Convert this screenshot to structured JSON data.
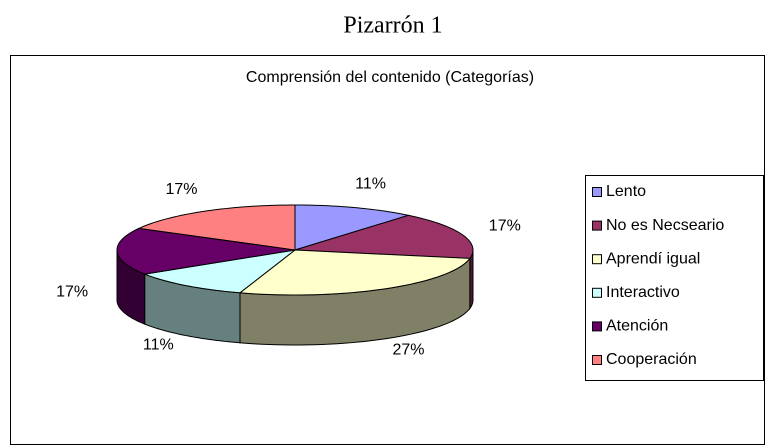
{
  "chart_data": {
    "type": "pie3d",
    "title": "Pizarrón 1",
    "subtitle": "Comprensión del contenido (Categorías)",
    "categories": [
      "Lento",
      "No es Necseario",
      "Aprendí igual",
      "Interactivo",
      "Atención",
      "Cooperación"
    ],
    "values": [
      11,
      17,
      27,
      11,
      17,
      17
    ],
    "value_labels": [
      "11%",
      "17%",
      "27%",
      "11%",
      "17%",
      "17%"
    ],
    "colors": [
      "#9999ff",
      "#993366",
      "#ffffcc",
      "#ccffff",
      "#660066",
      "#ff8080"
    ],
    "legend": "right"
  }
}
